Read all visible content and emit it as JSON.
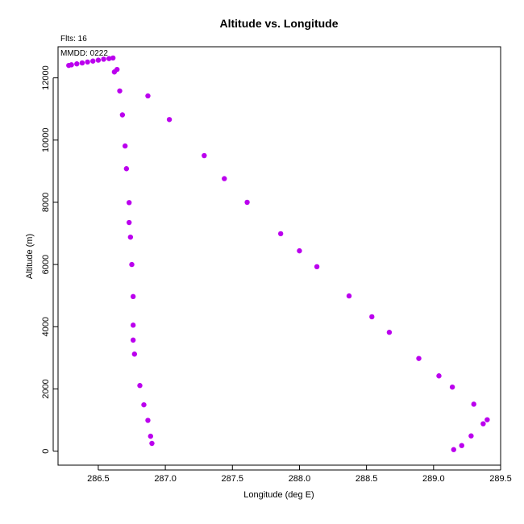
{
  "chart_data": {
    "type": "scatter",
    "title": "Altitude vs. Longitude",
    "xlabel": "Longitude (deg E)",
    "ylabel": "Altitude (m)",
    "xlim": [
      286.2,
      289.5
    ],
    "ylim": [
      -450,
      13000
    ],
    "x_ticks": [
      286.5,
      287.0,
      287.5,
      288.0,
      288.5,
      289.0,
      289.5
    ],
    "x_tick_labels": [
      "286.5",
      "287.0",
      "287.5",
      "288.0",
      "288.5",
      "289.0",
      "289.5"
    ],
    "y_ticks": [
      0,
      2000,
      4000,
      6000,
      8000,
      10000,
      12000
    ],
    "y_tick_labels": [
      "0",
      "2000",
      "4000",
      "6000",
      "8000",
      "10000",
      "12000"
    ],
    "annotations": [
      "Flts: 16",
      "MMDD: 0222"
    ],
    "marker_color": "#bb00ee",
    "grid": false,
    "points": [
      {
        "x": 286.28,
        "y": 12400
      },
      {
        "x": 286.3,
        "y": 12420
      },
      {
        "x": 286.34,
        "y": 12450
      },
      {
        "x": 286.38,
        "y": 12480
      },
      {
        "x": 286.42,
        "y": 12510
      },
      {
        "x": 286.46,
        "y": 12540
      },
      {
        "x": 286.5,
        "y": 12570
      },
      {
        "x": 286.54,
        "y": 12600
      },
      {
        "x": 286.58,
        "y": 12620
      },
      {
        "x": 286.61,
        "y": 12640
      },
      {
        "x": 286.62,
        "y": 12190
      },
      {
        "x": 286.64,
        "y": 12270
      },
      {
        "x": 286.66,
        "y": 11580
      },
      {
        "x": 286.68,
        "y": 10810
      },
      {
        "x": 286.7,
        "y": 9810
      },
      {
        "x": 286.71,
        "y": 9080
      },
      {
        "x": 286.73,
        "y": 7990
      },
      {
        "x": 286.73,
        "y": 7350
      },
      {
        "x": 286.74,
        "y": 6880
      },
      {
        "x": 286.75,
        "y": 6000
      },
      {
        "x": 286.76,
        "y": 4970
      },
      {
        "x": 286.76,
        "y": 4050
      },
      {
        "x": 286.76,
        "y": 3570
      },
      {
        "x": 286.77,
        "y": 3120
      },
      {
        "x": 286.81,
        "y": 2110
      },
      {
        "x": 286.84,
        "y": 1490
      },
      {
        "x": 286.87,
        "y": 990
      },
      {
        "x": 286.89,
        "y": 480
      },
      {
        "x": 286.9,
        "y": 250
      },
      {
        "x": 286.87,
        "y": 11420
      },
      {
        "x": 287.03,
        "y": 10660
      },
      {
        "x": 287.29,
        "y": 9500
      },
      {
        "x": 287.44,
        "y": 8760
      },
      {
        "x": 287.61,
        "y": 8000
      },
      {
        "x": 287.86,
        "y": 6990
      },
      {
        "x": 288.0,
        "y": 6440
      },
      {
        "x": 288.13,
        "y": 5930
      },
      {
        "x": 288.37,
        "y": 4990
      },
      {
        "x": 288.54,
        "y": 4320
      },
      {
        "x": 288.67,
        "y": 3820
      },
      {
        "x": 288.89,
        "y": 2980
      },
      {
        "x": 289.04,
        "y": 2420
      },
      {
        "x": 289.14,
        "y": 2060
      },
      {
        "x": 289.3,
        "y": 1510
      },
      {
        "x": 289.4,
        "y": 1010
      },
      {
        "x": 289.37,
        "y": 880
      },
      {
        "x": 289.28,
        "y": 490
      },
      {
        "x": 289.21,
        "y": 180
      },
      {
        "x": 289.15,
        "y": 50
      }
    ]
  }
}
